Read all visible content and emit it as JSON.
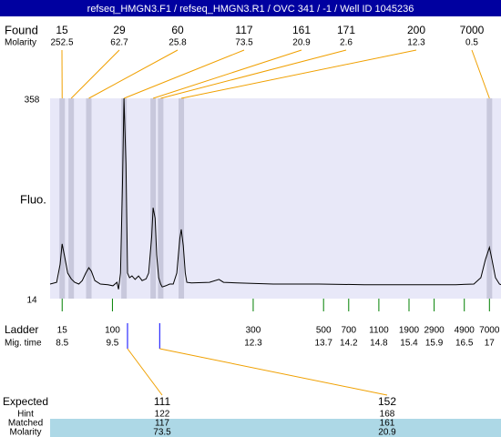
{
  "header": {
    "title": "refseq_HMGN3.F1 / refseq_HMGN3.R1 / OVC 341 / -1 / Well ID 1045236"
  },
  "chart_data": {
    "type": "line",
    "ylabel": "Fluo.",
    "color": "#000000",
    "ylim": [
      14,
      358
    ],
    "yticks": [
      14,
      358
    ],
    "xlim": [
      8.26,
      17.23
    ],
    "x": [
      8.26,
      8.39,
      8.46,
      8.5,
      8.55,
      8.61,
      8.68,
      8.75,
      8.83,
      8.9,
      8.97,
      9.03,
      9.08,
      9.15,
      9.26,
      9.41,
      9.51,
      9.59,
      9.62,
      9.66,
      9.7,
      9.73,
      9.77,
      9.8,
      9.84,
      9.89,
      9.95,
      10.02,
      10.09,
      10.17,
      10.22,
      10.28,
      10.31,
      10.35,
      10.38,
      10.42,
      10.46,
      10.49,
      10.56,
      10.64,
      10.71,
      10.78,
      10.84,
      10.87,
      10.91,
      10.95,
      10.98,
      11.07,
      11.43,
      11.62,
      11.71,
      11.98,
      12.7,
      13.61,
      14.51,
      15.42,
      16.33,
      16.69,
      16.83,
      16.92,
      17.0,
      17.05,
      17.12,
      17.2,
      17.23
    ],
    "values": [
      39,
      42,
      73,
      108,
      86,
      58,
      48,
      42,
      39,
      45,
      58,
      67,
      61,
      45,
      39,
      38,
      36,
      42,
      30,
      58,
      214,
      358,
      245,
      58,
      50,
      53,
      47,
      53,
      45,
      48,
      58,
      120,
      170,
      152,
      89,
      50,
      39,
      34,
      36,
      39,
      39,
      58,
      117,
      133,
      105,
      58,
      42,
      41,
      42,
      47,
      42,
      41,
      39,
      39,
      38,
      38,
      38,
      39,
      50,
      81,
      102,
      81,
      50,
      39,
      38
    ]
  },
  "found": {
    "label": "Found",
    "sublabel": "Molarity",
    "band_color": "#c8c8dc",
    "peaks": [
      {
        "size": 15,
        "molarity": 252.5,
        "time": 8.5
      },
      {
        "size": 29,
        "molarity": 62.7,
        "time": 8.68
      },
      {
        "size": 60,
        "molarity": 25.8,
        "time": 9.03
      },
      {
        "size": 117,
        "molarity": 73.5,
        "time": 9.73
      },
      {
        "size": 161,
        "molarity": 20.9,
        "time": 10.31
      },
      {
        "size": 171,
        "molarity": 2.6,
        "time": 10.46
      },
      {
        "size": 200,
        "molarity": 12.3,
        "time": 10.87
      },
      {
        "size": 7000,
        "molarity": 0.5,
        "time": 17.0
      }
    ]
  },
  "ladder": {
    "label": "Ladder",
    "sublabel": "Mig. time",
    "sizes": [
      15,
      100,
      300,
      500,
      700,
      1100,
      1900,
      2900,
      4900,
      7000
    ],
    "times": [
      8.5,
      9.5,
      12.3,
      13.7,
      14.2,
      14.8,
      15.4,
      15.9,
      16.5,
      17
    ]
  },
  "expected": {
    "label": "Expected",
    "hint_label": "Hint",
    "matched_label": "Matched",
    "molarity_label": "Molarity",
    "items": [
      {
        "expected": 111,
        "hint": 122,
        "matched": 117,
        "molarity": 73.5,
        "time": 9.8
      },
      {
        "expected": 152,
        "hint": 168,
        "matched": 161,
        "molarity": 20.9,
        "time": 10.44
      }
    ]
  }
}
